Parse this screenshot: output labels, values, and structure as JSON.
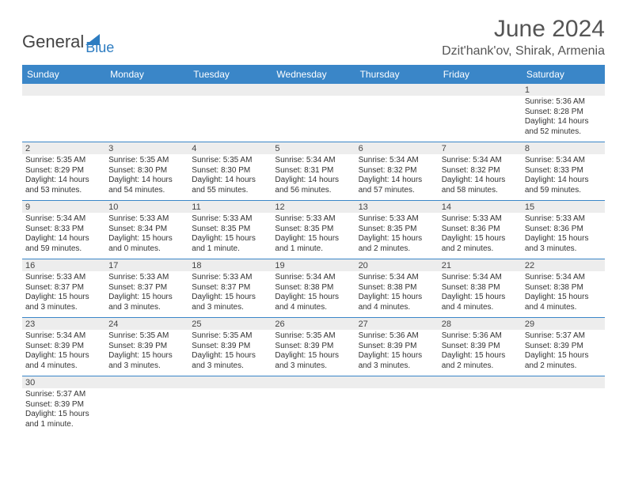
{
  "logo": {
    "part1": "General",
    "part2": "Blue"
  },
  "title": "June 2024",
  "location": "Dzit'hank'ov, Shirak, Armenia",
  "colors": {
    "header_bg": "#3a86c8",
    "accent": "#2d7cc1",
    "grey": "#ededed"
  },
  "day_names": [
    "Sunday",
    "Monday",
    "Tuesday",
    "Wednesday",
    "Thursday",
    "Friday",
    "Saturday"
  ],
  "weeks": [
    [
      null,
      null,
      null,
      null,
      null,
      null,
      {
        "n": "1",
        "sr": "Sunrise: 5:36 AM",
        "ss": "Sunset: 8:28 PM",
        "dl": "Daylight: 14 hours and 52 minutes."
      }
    ],
    [
      {
        "n": "2",
        "sr": "Sunrise: 5:35 AM",
        "ss": "Sunset: 8:29 PM",
        "dl": "Daylight: 14 hours and 53 minutes."
      },
      {
        "n": "3",
        "sr": "Sunrise: 5:35 AM",
        "ss": "Sunset: 8:30 PM",
        "dl": "Daylight: 14 hours and 54 minutes."
      },
      {
        "n": "4",
        "sr": "Sunrise: 5:35 AM",
        "ss": "Sunset: 8:30 PM",
        "dl": "Daylight: 14 hours and 55 minutes."
      },
      {
        "n": "5",
        "sr": "Sunrise: 5:34 AM",
        "ss": "Sunset: 8:31 PM",
        "dl": "Daylight: 14 hours and 56 minutes."
      },
      {
        "n": "6",
        "sr": "Sunrise: 5:34 AM",
        "ss": "Sunset: 8:32 PM",
        "dl": "Daylight: 14 hours and 57 minutes."
      },
      {
        "n": "7",
        "sr": "Sunrise: 5:34 AM",
        "ss": "Sunset: 8:32 PM",
        "dl": "Daylight: 14 hours and 58 minutes."
      },
      {
        "n": "8",
        "sr": "Sunrise: 5:34 AM",
        "ss": "Sunset: 8:33 PM",
        "dl": "Daylight: 14 hours and 59 minutes."
      }
    ],
    [
      {
        "n": "9",
        "sr": "Sunrise: 5:34 AM",
        "ss": "Sunset: 8:33 PM",
        "dl": "Daylight: 14 hours and 59 minutes."
      },
      {
        "n": "10",
        "sr": "Sunrise: 5:33 AM",
        "ss": "Sunset: 8:34 PM",
        "dl": "Daylight: 15 hours and 0 minutes."
      },
      {
        "n": "11",
        "sr": "Sunrise: 5:33 AM",
        "ss": "Sunset: 8:35 PM",
        "dl": "Daylight: 15 hours and 1 minute."
      },
      {
        "n": "12",
        "sr": "Sunrise: 5:33 AM",
        "ss": "Sunset: 8:35 PM",
        "dl": "Daylight: 15 hours and 1 minute."
      },
      {
        "n": "13",
        "sr": "Sunrise: 5:33 AM",
        "ss": "Sunset: 8:35 PM",
        "dl": "Daylight: 15 hours and 2 minutes."
      },
      {
        "n": "14",
        "sr": "Sunrise: 5:33 AM",
        "ss": "Sunset: 8:36 PM",
        "dl": "Daylight: 15 hours and 2 minutes."
      },
      {
        "n": "15",
        "sr": "Sunrise: 5:33 AM",
        "ss": "Sunset: 8:36 PM",
        "dl": "Daylight: 15 hours and 3 minutes."
      }
    ],
    [
      {
        "n": "16",
        "sr": "Sunrise: 5:33 AM",
        "ss": "Sunset: 8:37 PM",
        "dl": "Daylight: 15 hours and 3 minutes."
      },
      {
        "n": "17",
        "sr": "Sunrise: 5:33 AM",
        "ss": "Sunset: 8:37 PM",
        "dl": "Daylight: 15 hours and 3 minutes."
      },
      {
        "n": "18",
        "sr": "Sunrise: 5:33 AM",
        "ss": "Sunset: 8:37 PM",
        "dl": "Daylight: 15 hours and 3 minutes."
      },
      {
        "n": "19",
        "sr": "Sunrise: 5:34 AM",
        "ss": "Sunset: 8:38 PM",
        "dl": "Daylight: 15 hours and 4 minutes."
      },
      {
        "n": "20",
        "sr": "Sunrise: 5:34 AM",
        "ss": "Sunset: 8:38 PM",
        "dl": "Daylight: 15 hours and 4 minutes."
      },
      {
        "n": "21",
        "sr": "Sunrise: 5:34 AM",
        "ss": "Sunset: 8:38 PM",
        "dl": "Daylight: 15 hours and 4 minutes."
      },
      {
        "n": "22",
        "sr": "Sunrise: 5:34 AM",
        "ss": "Sunset: 8:38 PM",
        "dl": "Daylight: 15 hours and 4 minutes."
      }
    ],
    [
      {
        "n": "23",
        "sr": "Sunrise: 5:34 AM",
        "ss": "Sunset: 8:39 PM",
        "dl": "Daylight: 15 hours and 4 minutes."
      },
      {
        "n": "24",
        "sr": "Sunrise: 5:35 AM",
        "ss": "Sunset: 8:39 PM",
        "dl": "Daylight: 15 hours and 3 minutes."
      },
      {
        "n": "25",
        "sr": "Sunrise: 5:35 AM",
        "ss": "Sunset: 8:39 PM",
        "dl": "Daylight: 15 hours and 3 minutes."
      },
      {
        "n": "26",
        "sr": "Sunrise: 5:35 AM",
        "ss": "Sunset: 8:39 PM",
        "dl": "Daylight: 15 hours and 3 minutes."
      },
      {
        "n": "27",
        "sr": "Sunrise: 5:36 AM",
        "ss": "Sunset: 8:39 PM",
        "dl": "Daylight: 15 hours and 3 minutes."
      },
      {
        "n": "28",
        "sr": "Sunrise: 5:36 AM",
        "ss": "Sunset: 8:39 PM",
        "dl": "Daylight: 15 hours and 2 minutes."
      },
      {
        "n": "29",
        "sr": "Sunrise: 5:37 AM",
        "ss": "Sunset: 8:39 PM",
        "dl": "Daylight: 15 hours and 2 minutes."
      }
    ],
    [
      {
        "n": "30",
        "sr": "Sunrise: 5:37 AM",
        "ss": "Sunset: 8:39 PM",
        "dl": "Daylight: 15 hours and 1 minute."
      },
      null,
      null,
      null,
      null,
      null,
      null
    ]
  ]
}
